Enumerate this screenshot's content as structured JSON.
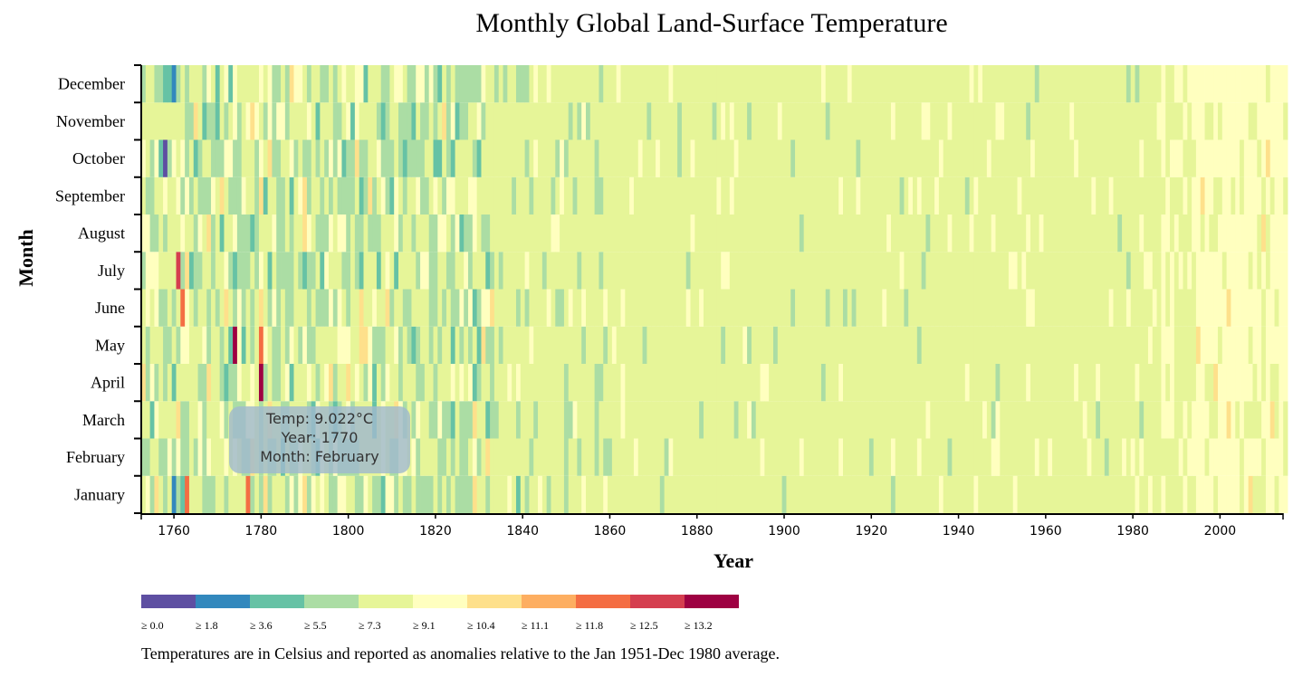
{
  "chart_data": {
    "type": "heatmap",
    "title": "Monthly Global Land-Surface Temperature",
    "xlabel": "Year",
    "ylabel": "Month",
    "xlim": [
      1753,
      2015
    ],
    "x_ticks": [
      "1760",
      "1780",
      "1800",
      "1820",
      "1840",
      "1860",
      "1880",
      "1900",
      "1920",
      "1940",
      "1960",
      "1980",
      "2000"
    ],
    "months": [
      "January",
      "February",
      "March",
      "April",
      "May",
      "June",
      "July",
      "August",
      "September",
      "October",
      "November",
      "December"
    ],
    "legend": {
      "thresholds": [
        0.0,
        1.8,
        3.6,
        5.5,
        7.3,
        9.1,
        10.4,
        11.1,
        11.8,
        12.5,
        13.2
      ],
      "labels": [
        "≥ 0.0",
        "≥ 1.8",
        "≥ 3.6",
        "≥ 5.5",
        "≥ 7.3",
        "≥ 9.1",
        "≥ 10.4",
        "≥ 11.1",
        "≥ 11.8",
        "≥ 12.5",
        "≥ 13.2"
      ],
      "colors": [
        "#5e4fa2",
        "#3288bd",
        "#66c2a5",
        "#abdda4",
        "#e6f598",
        "#ffffbf",
        "#fee08b",
        "#fdae61",
        "#f46d43",
        "#d53e4f",
        "#9e0142"
      ]
    },
    "notable_cells": [
      {
        "year": 1758,
        "month": "October",
        "bin": 0
      },
      {
        "year": 1760,
        "month": "December",
        "bin": 1
      },
      {
        "year": 1760,
        "month": "January",
        "bin": 1
      },
      {
        "year": 1761,
        "month": "July",
        "bin": 9
      },
      {
        "year": 1762,
        "month": "June",
        "bin": 8
      },
      {
        "year": 1763,
        "month": "January",
        "bin": 8
      },
      {
        "year": 1774,
        "month": "May",
        "bin": 10
      },
      {
        "year": 1777,
        "month": "January",
        "bin": 8
      },
      {
        "year": 1780,
        "month": "May",
        "bin": 8
      },
      {
        "year": 1780,
        "month": "April",
        "bin": 10
      },
      {
        "year": 1758,
        "month": "December",
        "bin": 2
      },
      {
        "year": 1765,
        "month": "October",
        "bin": 2
      },
      {
        "year": 1813,
        "month": "October",
        "bin": 2
      },
      {
        "year": 1821,
        "month": "December",
        "bin": 2
      },
      {
        "year": 1839,
        "month": "January",
        "bin": 2
      },
      {
        "year": 2007,
        "month": "January",
        "bin": 6
      }
    ],
    "background_bins": {
      "early_years_max": 1833,
      "modern_start": 1987,
      "warm_start": 1995
    }
  },
  "tooltip": {
    "temp_line": "Temp: 9.022°C",
    "year_line": "Year: 1770",
    "month_line": "Month: February"
  },
  "note": "Temperatures are in Celsius and reported as anomalies relative to the Jan 1951-Dec 1980 average."
}
